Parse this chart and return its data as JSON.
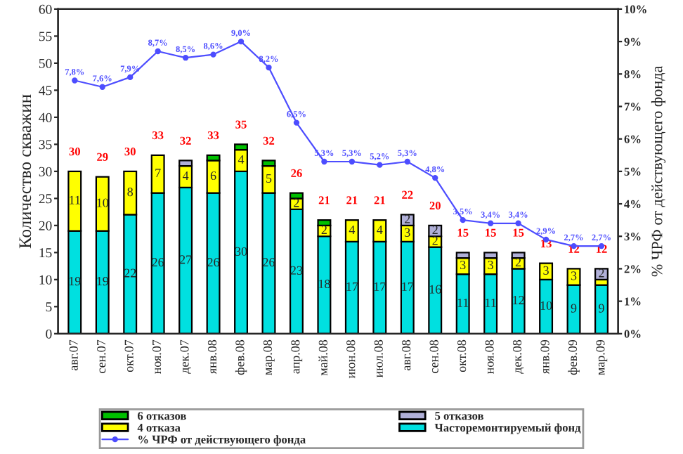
{
  "chart_data": {
    "type": "bar",
    "stacked": true,
    "ylabel": "Количество скважин",
    "y2label": "% ЧРФ от действующего фонда",
    "categories": [
      "авг.07",
      "сен.07",
      "окт.07",
      "ноя.07",
      "дек.07",
      "янв.08",
      "фев.08",
      "мар.08",
      "апр.08",
      "май.08",
      "июн.08",
      "июл.08",
      "авг.08",
      "сен.08",
      "окт.08",
      "ноя.08",
      "дек.08",
      "янв.09",
      "фев.09",
      "мар.09"
    ],
    "series": [
      {
        "name": "Часторемонтируемый фонд",
        "color": "#00e0e0",
        "values": [
          19,
          19,
          22,
          26,
          27,
          26,
          30,
          26,
          23,
          18,
          17,
          17,
          17,
          16,
          11,
          11,
          12,
          10,
          9,
          9
        ],
        "value_labels": [
          "19",
          "19",
          "22",
          "26",
          "27",
          "26",
          "30",
          "26",
          "23",
          "18",
          "17",
          "17",
          "17",
          "16",
          "11",
          "11",
          "12",
          "10",
          "9",
          "9"
        ]
      },
      {
        "name": "4 отказа",
        "color": "#ffff00",
        "values": [
          11,
          10,
          8,
          7,
          4,
          6,
          4,
          5,
          2,
          2,
          4,
          4,
          3,
          2,
          3,
          3,
          2,
          3,
          3,
          1
        ],
        "value_labels": [
          "11",
          "10",
          "8",
          "7",
          "4",
          "6",
          "4",
          "5",
          "2",
          "2",
          "4",
          "4",
          "3",
          "2",
          "3",
          "3",
          "2",
          "3",
          "3",
          null
        ]
      },
      {
        "name": "5 отказов",
        "color": "#b0b0d8",
        "values": [
          null,
          null,
          null,
          null,
          1,
          null,
          null,
          null,
          null,
          null,
          null,
          null,
          2,
          2,
          1,
          1,
          1,
          null,
          null,
          2
        ],
        "value_labels": [
          null,
          null,
          null,
          null,
          null,
          null,
          null,
          null,
          null,
          null,
          null,
          null,
          "2",
          "2",
          null,
          null,
          null,
          null,
          null,
          "2"
        ]
      },
      {
        "name": "6 отказов",
        "color": "#00c000",
        "values": [
          null,
          null,
          null,
          null,
          null,
          1,
          1,
          1,
          1,
          1,
          null,
          null,
          null,
          null,
          null,
          null,
          null,
          null,
          null,
          null
        ]
      },
      {
        "name": "% ЧРФ от действующего фонда",
        "type": "line",
        "axis": "y2",
        "color": "#4d4dff",
        "marker": "circle",
        "values": [
          7.8,
          7.6,
          7.9,
          8.7,
          8.5,
          8.6,
          9.0,
          8.2,
          6.5,
          5.3,
          5.3,
          5.2,
          5.3,
          4.8,
          3.5,
          3.4,
          3.4,
          2.9,
          2.7,
          2.7
        ],
        "value_labels": [
          "7,8%",
          "7,6%",
          "7,9%",
          "8,7%",
          "8,5%",
          "8,6%",
          "9,0%",
          "8,2%",
          "6,5%",
          "5,3%",
          "5,3%",
          "5,2%",
          "5,3%",
          "4,8%",
          "3,5%",
          "3,4%",
          "3,4%",
          "2,9%",
          "2,7%",
          "2,7%"
        ]
      }
    ],
    "totals": [
      "30",
      "29",
      "30",
      "33",
      "32",
      "33",
      "35",
      "32",
      "26",
      "21",
      "21",
      "21",
      "22",
      "20",
      "15",
      "15",
      "15",
      "13",
      "12",
      "12"
    ],
    "ylim": [
      0,
      60
    ],
    "yticks": [
      0,
      5,
      10,
      15,
      20,
      25,
      30,
      35,
      40,
      45,
      50,
      55,
      60
    ],
    "y2lim": [
      0,
      10
    ],
    "y2ticks": [
      {
        "value": 0,
        "label": "0%"
      },
      {
        "value": 1,
        "label": "1%"
      },
      {
        "value": 2,
        "label": "2%"
      },
      {
        "value": 3,
        "label": "3%"
      },
      {
        "value": 4,
        "label": "4%"
      },
      {
        "value": 5,
        "label": "5%"
      },
      {
        "value": 6,
        "label": "6%"
      },
      {
        "value": 7,
        "label": "7%"
      },
      {
        "value": 8,
        "label": "8%"
      },
      {
        "value": 9,
        "label": "9%"
      },
      {
        "value": 10,
        "label": "10%"
      }
    ],
    "grid": false,
    "legend": "bottom"
  }
}
